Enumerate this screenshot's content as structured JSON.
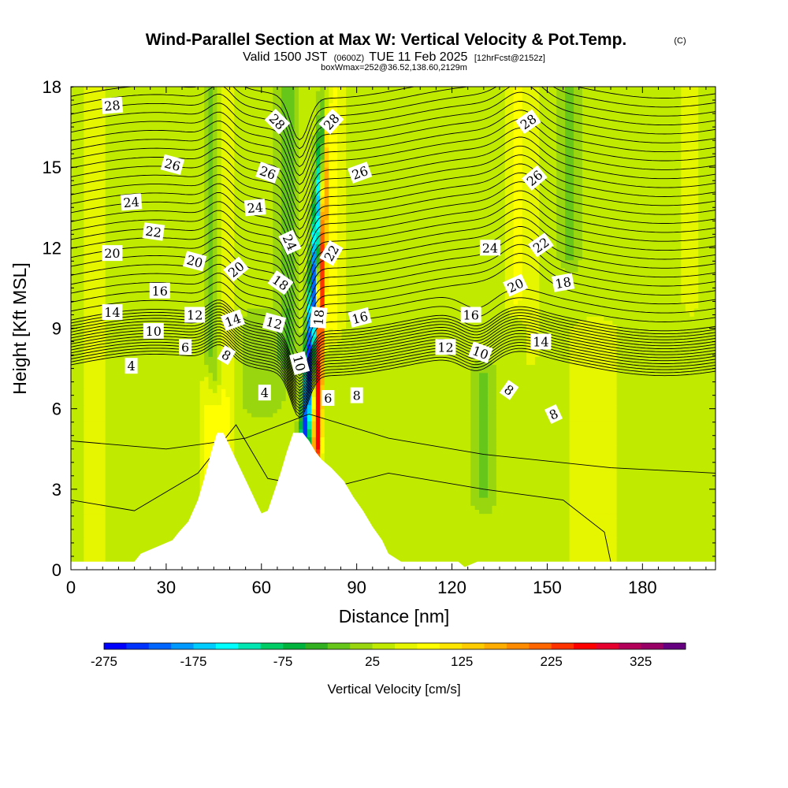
{
  "header": {
    "title": "Wind-Parallel Section at Max W: Vertical Velocity & Pot.Temp.",
    "copyright": "(C)",
    "valid_prefix": "Valid 1500 JST",
    "valid_z": "(0600Z)",
    "valid_date": "TUE 11 Feb 2025",
    "forecast": "[12hrFcst@2152z]",
    "box_info": "boxWmax=252@36.52,138.60,2129m"
  },
  "chart_data": {
    "type": "heatmap",
    "title": "Wind-Parallel Section at Max W: Vertical Velocity & Pot.Temp.",
    "xlabel": "Distance [nm]",
    "ylabel": "Height [Kft MSL]",
    "xlim": [
      0,
      203
    ],
    "ylim": [
      0,
      18
    ],
    "x_ticks": [
      0,
      30,
      60,
      90,
      120,
      150,
      180
    ],
    "y_ticks": [
      0,
      3,
      6,
      9,
      12,
      15,
      18
    ],
    "x_tick_labels": [
      "0",
      "30",
      "60",
      "90",
      "120",
      "150",
      "180"
    ],
    "y_tick_labels": [
      "0",
      "3",
      "6",
      "9",
      "12",
      "15",
      "18"
    ],
    "colorbar": {
      "label": "Vertical Velocity [cm/s]",
      "tick_values": [
        -275,
        -175,
        -75,
        25,
        125,
        225,
        325
      ],
      "tick_labels": [
        "-275",
        "-175",
        "-75",
        "25",
        "125",
        "225",
        "325"
      ],
      "bins": [
        -300,
        -275,
        -250,
        -225,
        -200,
        -175,
        -150,
        -125,
        -100,
        -75,
        -50,
        -25,
        0,
        25,
        50,
        75,
        100,
        125,
        150,
        175,
        200,
        225,
        250,
        275,
        300,
        325,
        350
      ],
      "colors": [
        "#0000ff",
        "#0033ff",
        "#0066ff",
        "#0099ff",
        "#00ccff",
        "#00ffff",
        "#00e6b2",
        "#00cc66",
        "#00b33c",
        "#33b01f",
        "#66c71a",
        "#99d60f",
        "#c0eb00",
        "#e6f500",
        "#ffff00",
        "#ffe600",
        "#ffcc00",
        "#ffad00",
        "#ff8c00",
        "#ff6600",
        "#ff3300",
        "#ff0000",
        "#e6002e",
        "#b30059",
        "#990066",
        "#660080"
      ]
    },
    "terrain": [
      [
        0,
        0.3
      ],
      [
        20,
        0.3
      ],
      [
        22,
        0.6
      ],
      [
        28,
        0.9
      ],
      [
        32,
        1.1
      ],
      [
        34,
        1.4
      ],
      [
        37,
        1.8
      ],
      [
        40,
        2.6
      ],
      [
        42,
        3.4
      ],
      [
        44,
        4.3
      ],
      [
        46,
        5.1
      ],
      [
        48,
        5.1
      ],
      [
        50,
        4.6
      ],
      [
        52,
        4.1
      ],
      [
        54,
        3.6
      ],
      [
        56,
        3.1
      ],
      [
        58,
        2.6
      ],
      [
        60,
        2.1
      ],
      [
        62,
        2.2
      ],
      [
        64,
        2.9
      ],
      [
        66,
        3.6
      ],
      [
        68,
        4.4
      ],
      [
        70,
        5.1
      ],
      [
        73,
        5.1
      ],
      [
        75,
        4.8
      ],
      [
        77,
        4.4
      ],
      [
        79,
        4.1
      ],
      [
        82,
        3.8
      ],
      [
        86,
        3.3
      ],
      [
        89,
        2.7
      ],
      [
        92,
        2.2
      ],
      [
        95,
        1.6
      ],
      [
        98,
        1.1
      ],
      [
        100,
        0.6
      ],
      [
        104,
        0.3
      ],
      [
        122,
        0.3
      ],
      [
        124,
        0.1
      ],
      [
        128,
        0.3
      ],
      [
        203,
        0.3
      ]
    ],
    "w_features": [
      {
        "x": 73.5,
        "z0": 4.5,
        "z1": 18,
        "lean": 0.5,
        "sigma": 1.5,
        "amp": -270
      },
      {
        "x": 77.5,
        "z0": 4.5,
        "z1": 18,
        "lean": 0.2,
        "sigma": 1.4,
        "amp": 245
      },
      {
        "x": 68,
        "z0": 8,
        "z1": 18,
        "lean": 0,
        "sigma": 2.5,
        "amp": -55
      },
      {
        "x": 83,
        "z0": 9,
        "z1": 18,
        "lean": 0,
        "sigma": 3,
        "amp": 55
      },
      {
        "x": 48,
        "z0": 0,
        "z1": 18,
        "lean": 0,
        "sigma": 3.5,
        "amp": 55
      },
      {
        "x": 43,
        "z0": 0,
        "z1": 7,
        "lean": 0,
        "sigma": 2.5,
        "amp": 45
      },
      {
        "x": 45,
        "z0": 7,
        "z1": 18,
        "lean": 0,
        "sigma": 2.5,
        "amp": -55
      },
      {
        "x": 140,
        "z0": 10,
        "z1": 18,
        "lean": 0,
        "sigma": 3.5,
        "amp": 45
      },
      {
        "x": 145,
        "z0": 8,
        "z1": 18,
        "lean": 0,
        "sigma": 3,
        "amp": 30
      },
      {
        "x": 157,
        "z0": 12,
        "z1": 18,
        "lean": 0,
        "sigma": 2.5,
        "amp": -55
      },
      {
        "x": 195,
        "z0": 10,
        "z1": 18,
        "lean": 0,
        "sigma": 3,
        "amp": 40
      },
      {
        "x": 60,
        "z0": 6.5,
        "z1": 9,
        "lean": 0,
        "sigma": 6,
        "amp": -25
      },
      {
        "x": 165,
        "z0": 0,
        "z1": 9,
        "lean": 0,
        "sigma": 10,
        "amp": 35
      },
      {
        "x": 130,
        "z0": 3,
        "z1": 7,
        "lean": 0,
        "sigma": 3,
        "amp": -45
      },
      {
        "x": 7,
        "z0": 0,
        "z1": 18,
        "lean": 0,
        "sigma": 6,
        "amp": 28
      }
    ],
    "contour_labels": [
      {
        "v": "28",
        "x": 13,
        "z": 17.3,
        "rot": -5
      },
      {
        "v": "28",
        "x": 65,
        "z": 16.7,
        "rot": 45
      },
      {
        "v": "28",
        "x": 82,
        "z": 16.7,
        "rot": -48
      },
      {
        "v": "28",
        "x": 144,
        "z": 16.7,
        "rot": -35
      },
      {
        "v": "26",
        "x": 32,
        "z": 15.1,
        "rot": 15
      },
      {
        "v": "26",
        "x": 62,
        "z": 14.8,
        "rot": 20
      },
      {
        "v": "26",
        "x": 91,
        "z": 14.8,
        "rot": -20
      },
      {
        "v": "26",
        "x": 146,
        "z": 14.6,
        "rot": -40
      },
      {
        "v": "24",
        "x": 19,
        "z": 13.7,
        "rot": -5
      },
      {
        "v": "24",
        "x": 58,
        "z": 13.5,
        "rot": -5
      },
      {
        "v": "24",
        "x": 69,
        "z": 12.2,
        "rot": 65
      },
      {
        "v": "24",
        "x": 132,
        "z": 12,
        "rot": 0
      },
      {
        "v": "22",
        "x": 26,
        "z": 12.6,
        "rot": 8
      },
      {
        "v": "22",
        "x": 82,
        "z": 11.8,
        "rot": -60
      },
      {
        "v": "22",
        "x": 148,
        "z": 12.1,
        "rot": -35
      },
      {
        "v": "20",
        "x": 13,
        "z": 11.8,
        "rot": 0
      },
      {
        "v": "20",
        "x": 39,
        "z": 11.5,
        "rot": 15
      },
      {
        "v": "20",
        "x": 52,
        "z": 11.2,
        "rot": -40
      },
      {
        "v": "20",
        "x": 140,
        "z": 10.6,
        "rot": -25
      },
      {
        "v": "18",
        "x": 66,
        "z": 10.7,
        "rot": 35
      },
      {
        "v": "18",
        "x": 155,
        "z": 10.7,
        "rot": -10
      },
      {
        "v": "18",
        "x": 78,
        "z": 9.4,
        "rot": -85
      },
      {
        "v": "16",
        "x": 28,
        "z": 10.4,
        "rot": 0
      },
      {
        "v": "16",
        "x": 91,
        "z": 9.4,
        "rot": -15
      },
      {
        "v": "16",
        "x": 126,
        "z": 9.5,
        "rot": 0
      },
      {
        "v": "14",
        "x": 13,
        "z": 9.6,
        "rot": 0
      },
      {
        "v": "14",
        "x": 51,
        "z": 9.3,
        "rot": -20
      },
      {
        "v": "14",
        "x": 148,
        "z": 8.5,
        "rot": 0
      },
      {
        "v": "12",
        "x": 39,
        "z": 9.5,
        "rot": 0
      },
      {
        "v": "12",
        "x": 64,
        "z": 9.2,
        "rot": 15
      },
      {
        "v": "12",
        "x": 118,
        "z": 8.3,
        "rot": 0
      },
      {
        "v": "10",
        "x": 26,
        "z": 8.9,
        "rot": 0
      },
      {
        "v": "10",
        "x": 72,
        "z": 7.7,
        "rot": 75
      },
      {
        "v": "10",
        "x": 129,
        "z": 8.1,
        "rot": 20
      },
      {
        "v": "8",
        "x": 49,
        "z": 8,
        "rot": 30
      },
      {
        "v": "8",
        "x": 90,
        "z": 6.5,
        "rot": 0
      },
      {
        "v": "8",
        "x": 138,
        "z": 6.7,
        "rot": 35
      },
      {
        "v": "8",
        "x": 152,
        "z": 5.8,
        "rot": -25
      },
      {
        "v": "6",
        "x": 36,
        "z": 8.3,
        "rot": 0
      },
      {
        "v": "6",
        "x": 81,
        "z": 6.4,
        "rot": 0
      },
      {
        "v": "4",
        "x": 19,
        "z": 7.6,
        "rot": 0
      },
      {
        "v": "4",
        "x": 61,
        "z": 6.6,
        "rot": 0
      }
    ]
  }
}
